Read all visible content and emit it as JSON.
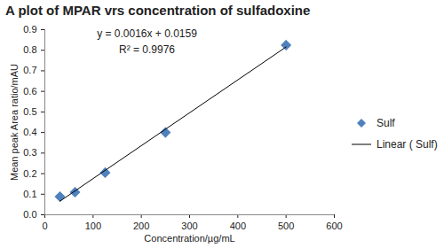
{
  "chart_data": {
    "type": "scatter",
    "title": "A plot of MPAR vrs concentration of sulfadoxine",
    "xlabel": "Concentration/µg/mL",
    "ylabel": "Mean peak Area ratio/mAU",
    "annotations": [
      "y = 0.0016x + 0.0159",
      "R² = 0.9976"
    ],
    "xlim": [
      0,
      600
    ],
    "xticks": [
      0,
      100,
      200,
      300,
      400,
      500,
      600
    ],
    "ylim": [
      0,
      0.9
    ],
    "yticks": [
      0,
      0.1,
      0.2,
      0.3,
      0.4,
      0.5,
      0.6,
      0.7,
      0.8,
      0.9
    ],
    "grid": false,
    "legend": "right",
    "series": [
      {
        "name": "Sulf",
        "type": "scatter",
        "marker": "diamond",
        "color": "#4f81bd",
        "x": [
          31.25,
          62.5,
          125,
          250,
          500
        ],
        "values": [
          0.088,
          0.11,
          0.205,
          0.4,
          0.825
        ]
      },
      {
        "name": "Linear ( Sulf)",
        "type": "line",
        "line_style": "solid",
        "color": "#000000",
        "x": [
          31.25,
          500
        ],
        "values": [
          0.066,
          0.816
        ]
      }
    ]
  }
}
